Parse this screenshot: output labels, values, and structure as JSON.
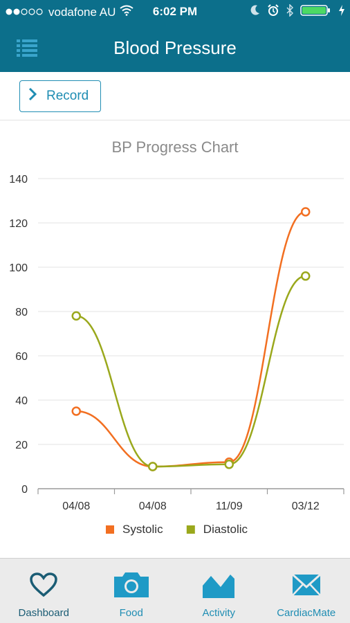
{
  "status_bar": {
    "carrier": "vodafone AU",
    "time": "6:02 PM"
  },
  "header": {
    "title": "Blood Pressure",
    "menu_icon": "list-icon"
  },
  "actions": {
    "record_label": "Record"
  },
  "colors": {
    "header_bg": "#0c6f8b",
    "accent": "#1f8db3",
    "systolic": "#f26f21",
    "diastolic": "#9aa81c"
  },
  "chart_data": {
    "type": "line",
    "title": "BP Progress Chart",
    "categories": [
      "04/08",
      "04/08",
      "11/09",
      "03/12"
    ],
    "series": [
      {
        "name": "Systolic",
        "values": [
          35,
          10,
          12,
          125
        ]
      },
      {
        "name": "Diastolic",
        "values": [
          78,
          10,
          11,
          96
        ]
      }
    ],
    "ylim": [
      0,
      140
    ],
    "yticks": [
      0,
      20,
      40,
      60,
      80,
      100,
      120,
      140
    ],
    "grid": true,
    "legend_position": "bottom"
  },
  "tabbar": {
    "tabs": [
      {
        "label": "Dashboard",
        "icon": "heart-icon"
      },
      {
        "label": "Food",
        "icon": "camera-icon"
      },
      {
        "label": "Activity",
        "icon": "activity-chart-icon"
      },
      {
        "label": "CardiacMate",
        "icon": "mail-icon"
      }
    ]
  }
}
